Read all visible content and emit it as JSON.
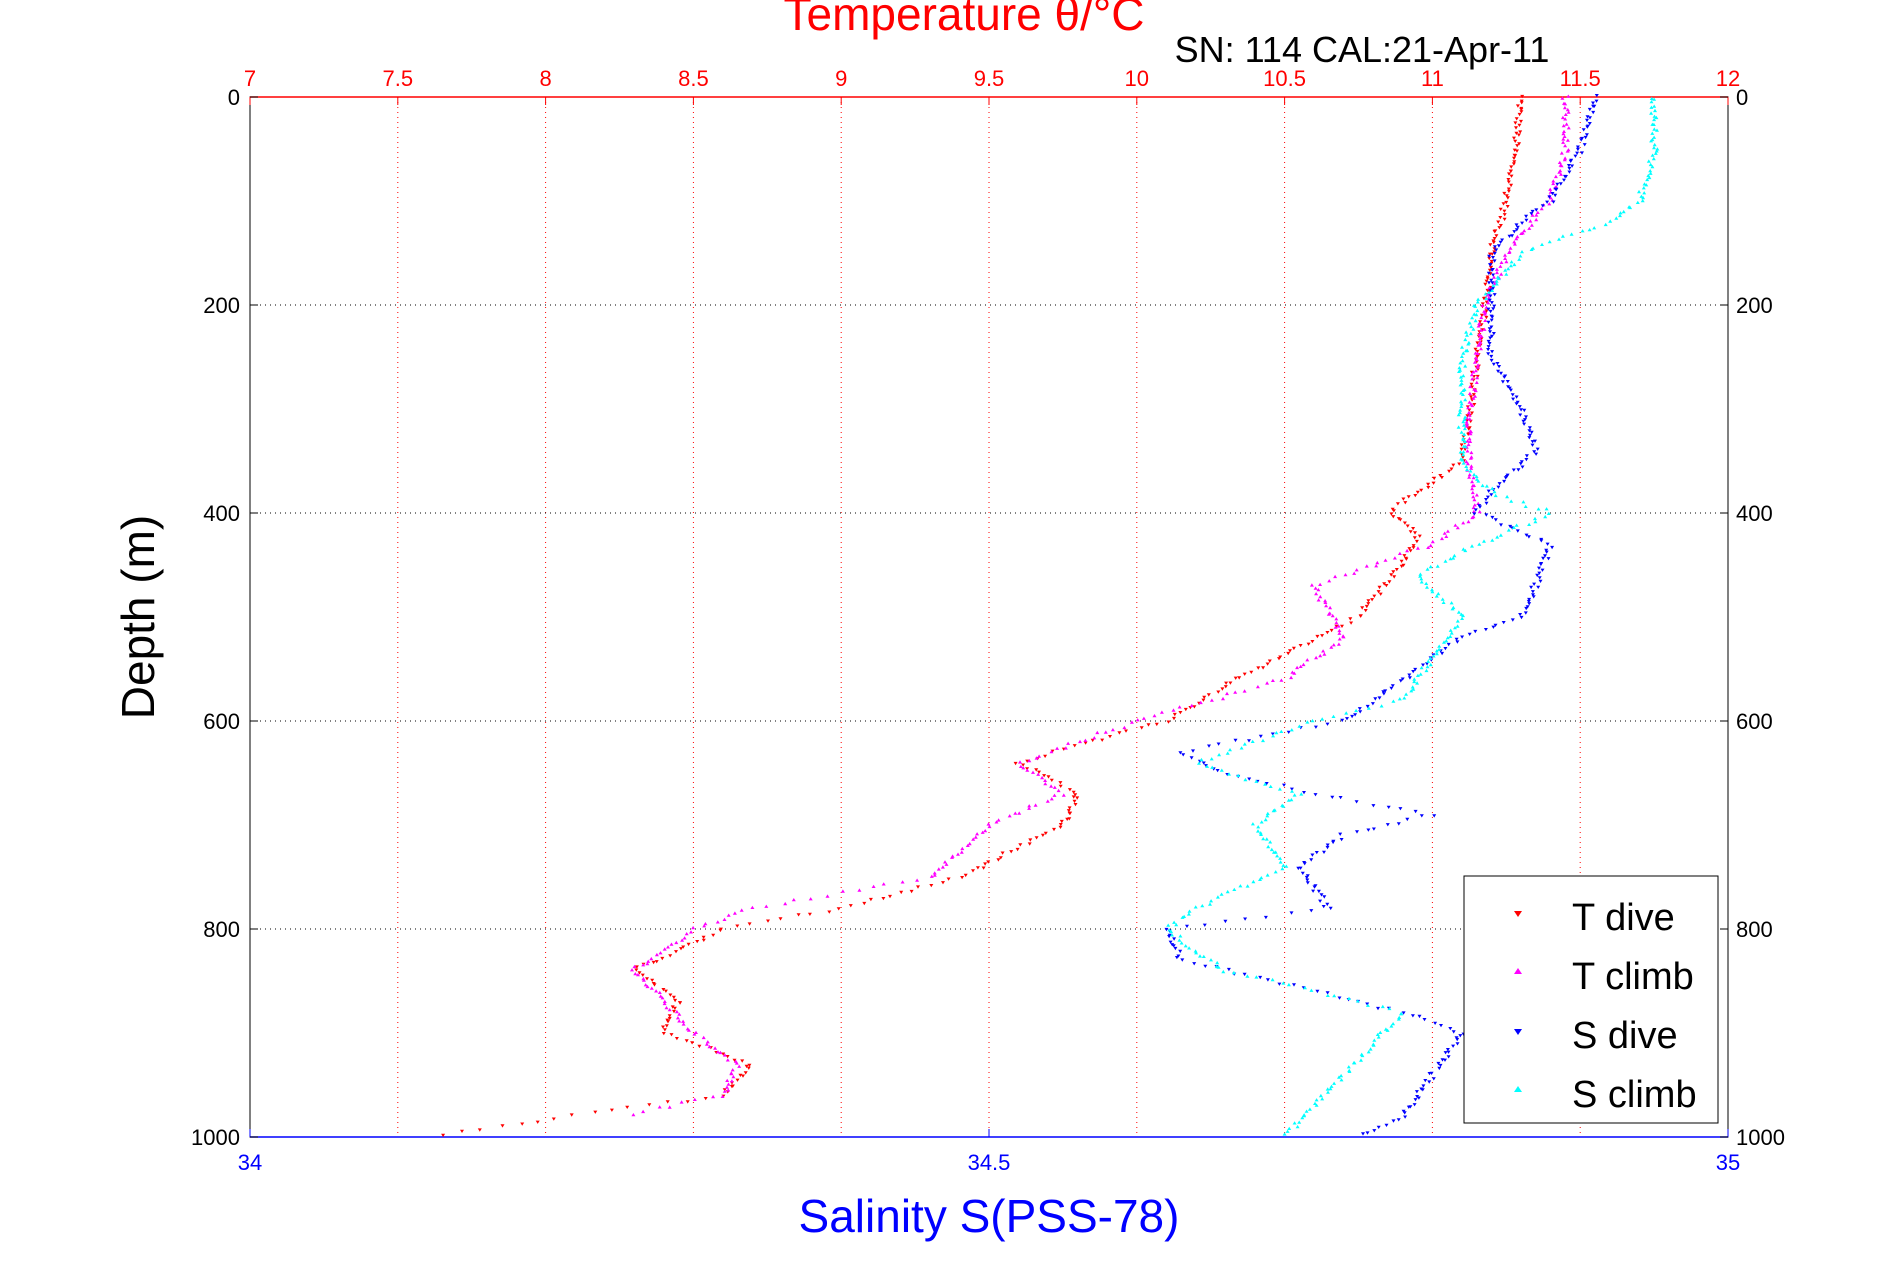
{
  "chart_data": {
    "type": "scatter",
    "title": "Temperature θ/°C",
    "subtitle": "SN: 114  CAL:21-Apr-11",
    "xlabel_top": "Temperature θ/°C",
    "xlabel_bottom": "Salinity S(PSS-78)",
    "ylabel": "Depth (m)",
    "x_top": {
      "lim": [
        7,
        12
      ],
      "ticks": [
        "7",
        "7.5",
        "8",
        "8.5",
        "9",
        "9.5",
        "10",
        "10.5",
        "11",
        "11.5",
        "12"
      ],
      "color": "#ff0000"
    },
    "x_bottom": {
      "lim": [
        34,
        35
      ],
      "ticks": [
        "34",
        "34.5",
        "35"
      ],
      "color": "#0000ff"
    },
    "y": {
      "lim": [
        0,
        1000
      ],
      "reversed": true,
      "ticks": [
        "0",
        "200",
        "400",
        "600",
        "800",
        "1000"
      ]
    },
    "grid": true,
    "legend_position": "bottom-right",
    "series": [
      {
        "name": "T dive",
        "axis": "temperature",
        "color": "#ff0000",
        "marker": "triangle-down",
        "depth": [
          0,
          50,
          100,
          150,
          200,
          250,
          300,
          350,
          380,
          400,
          420,
          450,
          500,
          550,
          600,
          640,
          670,
          700,
          750,
          780,
          800,
          840,
          870,
          900,
          930,
          960,
          980,
          1000
        ],
        "values": [
          11.3,
          11.28,
          11.25,
          11.2,
          11.18,
          11.15,
          11.13,
          11.1,
          10.95,
          10.85,
          10.95,
          10.9,
          10.75,
          10.4,
          10.1,
          9.6,
          9.8,
          9.75,
          9.4,
          9.0,
          8.6,
          8.3,
          8.45,
          8.4,
          8.7,
          8.6,
          8.1,
          7.6
        ]
      },
      {
        "name": "T climb",
        "axis": "temperature",
        "color": "#ff00ff",
        "marker": "triangle-up",
        "depth": [
          0,
          50,
          100,
          130,
          150,
          200,
          250,
          300,
          350,
          400,
          430,
          470,
          520,
          560,
          600,
          640,
          670,
          700,
          750,
          780,
          800,
          840,
          870,
          900,
          930,
          960,
          980
        ],
        "values": [
          11.45,
          11.45,
          11.4,
          11.3,
          11.25,
          11.18,
          11.15,
          11.13,
          11.12,
          11.15,
          11.0,
          10.6,
          10.7,
          10.5,
          10.0,
          9.6,
          9.75,
          9.5,
          9.3,
          8.7,
          8.5,
          8.3,
          8.4,
          8.5,
          8.65,
          8.6,
          8.25
        ]
      },
      {
        "name": "S dive",
        "axis": "salinity",
        "color": "#0000ff",
        "marker": "triangle-down",
        "depth": [
          0,
          50,
          100,
          120,
          150,
          200,
          250,
          300,
          340,
          380,
          400,
          430,
          470,
          500,
          520,
          540,
          560,
          600,
          630,
          650,
          670,
          690,
          710,
          740,
          780,
          800,
          830,
          860,
          880,
          900,
          980,
          1000
        ],
        "values": [
          34.91,
          34.9,
          34.88,
          34.86,
          34.84,
          34.84,
          34.84,
          34.86,
          34.87,
          34.84,
          34.83,
          34.88,
          34.87,
          34.86,
          34.82,
          34.8,
          34.78,
          34.74,
          34.63,
          34.66,
          34.72,
          34.8,
          34.74,
          34.71,
          34.73,
          34.62,
          34.63,
          34.72,
          34.78,
          34.82,
          34.78,
          34.75
        ]
      },
      {
        "name": "S climb",
        "axis": "salinity",
        "color": "#00ffff",
        "marker": "triangle-up",
        "depth": [
          0,
          50,
          100,
          120,
          150,
          200,
          250,
          300,
          350,
          380,
          400,
          430,
          460,
          500,
          540,
          580,
          600,
          640,
          670,
          700,
          740,
          780,
          800,
          840,
          860,
          880,
          1000
        ],
        "values": [
          34.95,
          34.95,
          34.94,
          34.92,
          34.86,
          34.83,
          34.82,
          34.82,
          34.82,
          34.84,
          34.88,
          34.83,
          34.79,
          34.82,
          34.8,
          34.78,
          34.72,
          34.64,
          34.71,
          34.68,
          34.7,
          34.64,
          34.62,
          34.66,
          34.72,
          34.78,
          34.7
        ]
      }
    ]
  },
  "legend": {
    "items": [
      {
        "label": "T dive",
        "color": "#ff0000"
      },
      {
        "label": "T climb",
        "color": "#ff00ff"
      },
      {
        "label": "S dive",
        "color": "#0000ff"
      },
      {
        "label": "S climb",
        "color": "#00ffff"
      }
    ]
  }
}
